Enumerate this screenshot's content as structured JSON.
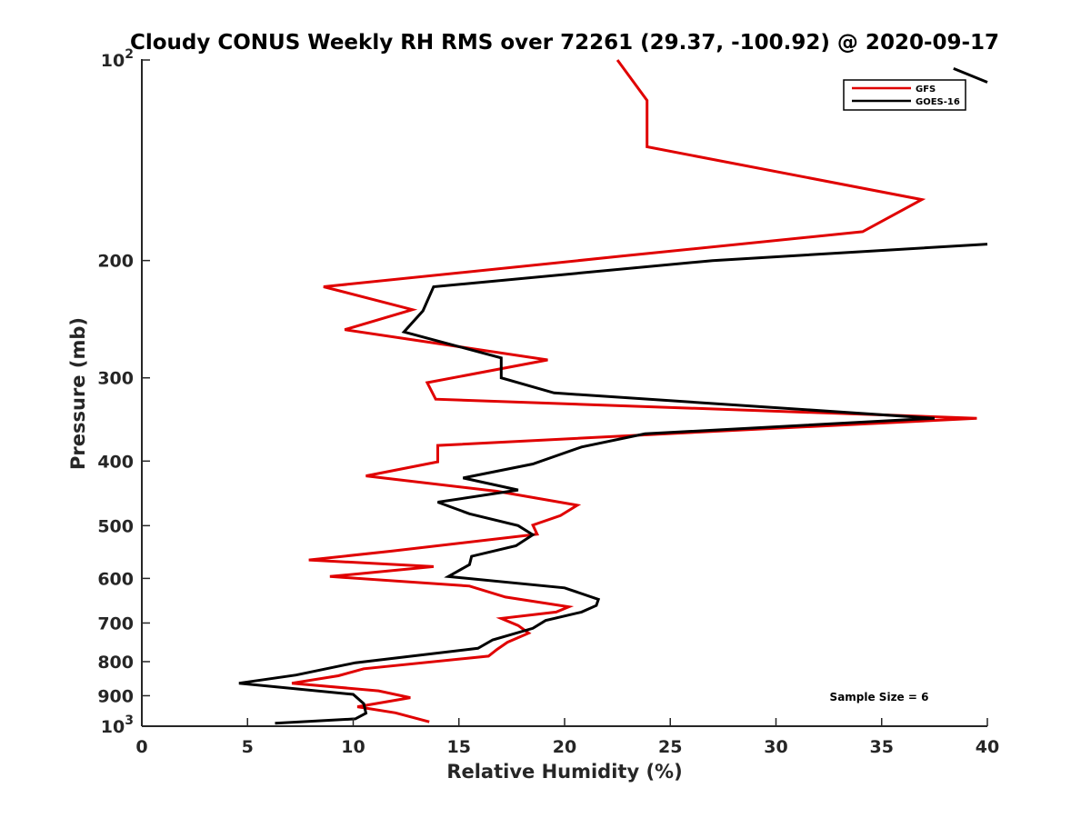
{
  "chart_data": {
    "type": "line",
    "title": "Cloudy CONUS Weekly RH RMS over 72261 (29.37, -100.92) @ 2020-09-17",
    "xlabel": "Relative Humidity (%)",
    "ylabel": "Pressure (mb)",
    "xlim": [
      0,
      40
    ],
    "ylim": [
      1000,
      100
    ],
    "yscale": "log",
    "y_reversed": true,
    "grid": false,
    "legend_position": "top-right",
    "x_ticks": [
      "0",
      "5",
      "10",
      "15",
      "20",
      "25",
      "30",
      "35",
      "40"
    ],
    "y_ticks": [
      {
        "value": 100,
        "base": "10",
        "exp": "2"
      },
      {
        "value": 200,
        "label": "200"
      },
      {
        "value": 300,
        "label": "300"
      },
      {
        "value": 400,
        "label": "400"
      },
      {
        "value": 500,
        "label": "500"
      },
      {
        "value": 600,
        "label": "600"
      },
      {
        "value": 700,
        "label": "700"
      },
      {
        "value": 800,
        "label": "800"
      },
      {
        "value": 900,
        "label": "900"
      },
      {
        "value": 1000,
        "base": "10",
        "exp": "3"
      }
    ],
    "series": [
      {
        "name": "GFS",
        "color": "#e00000",
        "points": [
          [
            22.5,
            100
          ],
          [
            23.9,
            115
          ],
          [
            23.9,
            135
          ],
          [
            36.9,
            162
          ],
          [
            34.1,
            181
          ],
          [
            22.7,
            197
          ],
          [
            8.6,
            219
          ],
          [
            12.8,
            237
          ],
          [
            9.6,
            254
          ],
          [
            19.2,
            282
          ],
          [
            13.5,
            305
          ],
          [
            13.9,
            323
          ],
          [
            39.5,
            345
          ],
          [
            24.0,
            365
          ],
          [
            14.0,
            379
          ],
          [
            14.0,
            401
          ],
          [
            10.6,
            421
          ],
          [
            16.8,
            444
          ],
          [
            20.6,
            466
          ],
          [
            19.8,
            483
          ],
          [
            18.5,
            499
          ],
          [
            18.7,
            515
          ],
          [
            11.8,
            546
          ],
          [
            7.9,
            563
          ],
          [
            13.8,
            576
          ],
          [
            8.9,
            596
          ],
          [
            15.5,
            616
          ],
          [
            17.2,
            640
          ],
          [
            20.2,
            662
          ],
          [
            19.6,
            674
          ],
          [
            17.0,
            689
          ],
          [
            17.8,
            706
          ],
          [
            18.3,
            725
          ],
          [
            17.3,
            748
          ],
          [
            16.8,
            767
          ],
          [
            16.4,
            785
          ],
          [
            10.5,
            820
          ],
          [
            9.3,
            840
          ],
          [
            7.1,
            862
          ],
          [
            11.2,
            885
          ],
          [
            12.7,
            906
          ],
          [
            10.2,
            935
          ],
          [
            12.0,
            955
          ],
          [
            13.6,
            985
          ]
        ]
      },
      {
        "name": "GOES-16",
        "color": "#000000",
        "points": [
          [
            40.0,
            108
          ],
          [
            38.4,
            103
          ],
          null,
          [
            40.0,
            189
          ],
          [
            27.0,
            200
          ],
          [
            13.8,
            219
          ],
          [
            13.3,
            238
          ],
          [
            12.4,
            256
          ],
          [
            17.0,
            280
          ],
          [
            17.0,
            300
          ],
          [
            19.5,
            316
          ],
          [
            37.5,
            345
          ],
          [
            23.8,
            364
          ],
          [
            20.8,
            381
          ],
          [
            18.5,
            404
          ],
          [
            15.2,
            424
          ],
          [
            17.8,
            442
          ],
          [
            14.0,
            461
          ],
          [
            15.5,
            480
          ],
          [
            17.8,
            500
          ],
          [
            18.5,
            516
          ],
          [
            17.7,
            536
          ],
          [
            15.6,
            556
          ],
          [
            15.5,
            572
          ],
          [
            14.5,
            596
          ],
          [
            20.0,
            620
          ],
          [
            21.6,
            645
          ],
          [
            21.5,
            659
          ],
          [
            20.8,
            674
          ],
          [
            19.1,
            694
          ],
          [
            18.5,
            713
          ],
          [
            16.6,
            742
          ],
          [
            15.9,
            764
          ],
          [
            10.1,
            803
          ],
          [
            7.3,
            838
          ],
          [
            4.6,
            862
          ],
          [
            10.0,
            896
          ],
          [
            10.5,
            925
          ],
          [
            10.6,
            956
          ],
          [
            10.1,
            975
          ],
          [
            6.3,
            990
          ]
        ]
      }
    ],
    "annotations": [
      {
        "text": "Sample Size = 6"
      }
    ]
  }
}
